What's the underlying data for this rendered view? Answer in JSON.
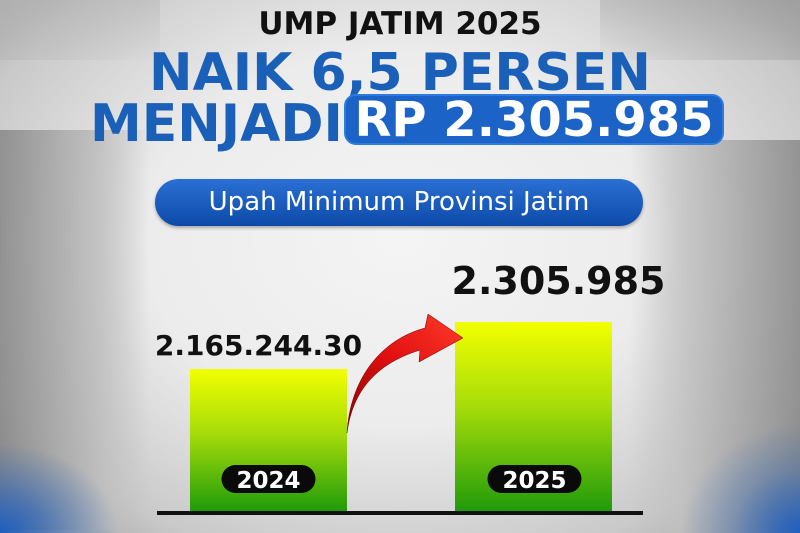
{
  "header": {
    "title": "UMP JATIM 2025",
    "headline_line1": "NAIK 6,5 PERSEN",
    "headline_line2": "MENJADI",
    "highlight_value": "RP 2.305.985",
    "subtitle": "Upah Minimum Provinsi Jatim"
  },
  "colors": {
    "brand_blue": "#1b63c6",
    "bar_top": "#f2ff00",
    "bar_bottom": "#1f9a0a",
    "arrow": "#e01010"
  },
  "chart_data": {
    "type": "bar",
    "title": "Upah Minimum Provinsi Jatim",
    "categories": [
      "2024",
      "2025"
    ],
    "values": [
      2165244.3,
      2305985
    ],
    "data_labels": [
      "2.165.244.30",
      "2.305.985"
    ],
    "ylim": [
      1737000,
      2306000
    ],
    "grid": false,
    "annotations": [
      "increase-arrow from 2024 to 2025"
    ]
  }
}
